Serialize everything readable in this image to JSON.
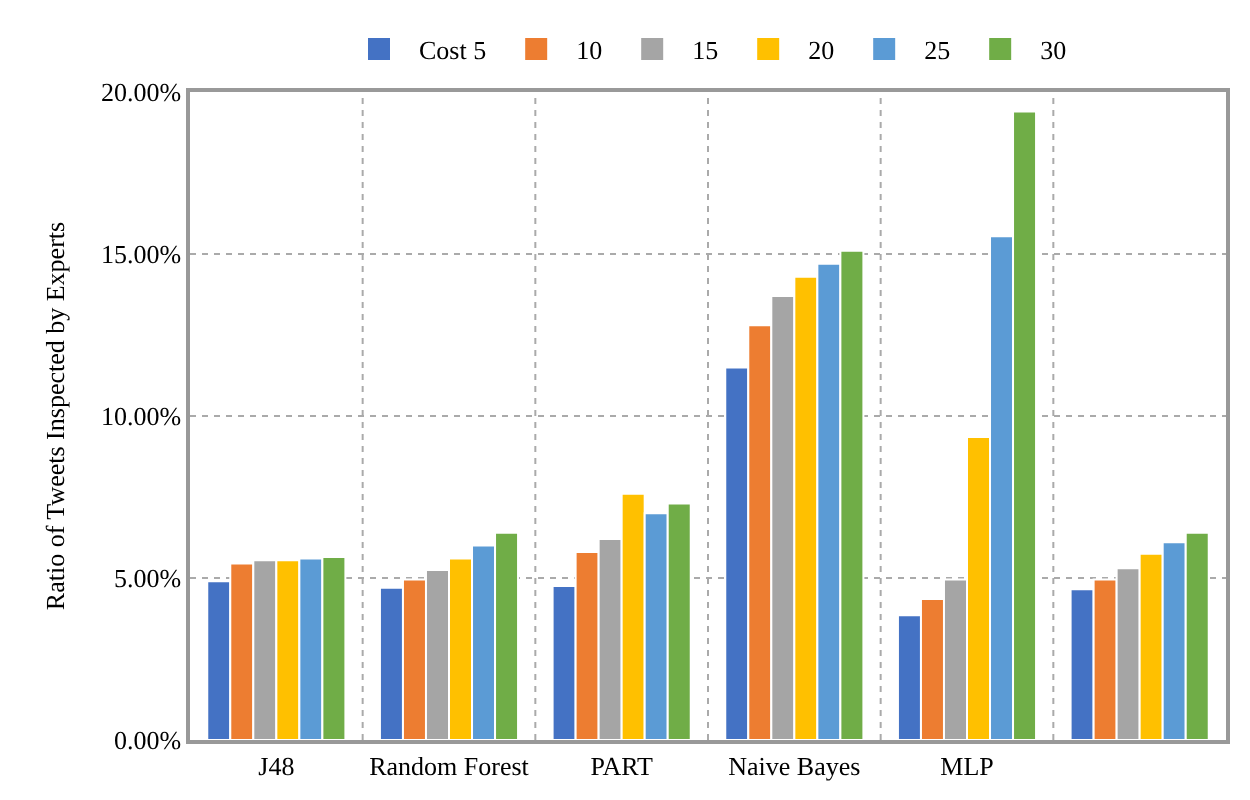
{
  "chart_data": {
    "type": "bar",
    "ylabel": "Ratio of Tweets Inspected by Experts",
    "categories": [
      "J48",
      "Random Forest",
      "PART",
      "Naive Bayes",
      "MLP",
      null
    ],
    "series": [
      {
        "name": "Cost 5",
        "color": "#4472c4",
        "values": [
          4.9,
          4.7,
          4.75,
          11.5,
          3.85,
          4.65
        ]
      },
      {
        "name": "10",
        "color": "#ed7d31",
        "values": [
          5.45,
          4.95,
          5.8,
          12.8,
          4.35,
          4.95
        ]
      },
      {
        "name": "15",
        "color": "#a5a5a5",
        "values": [
          5.55,
          5.25,
          6.2,
          13.7,
          4.95,
          5.3
        ]
      },
      {
        "name": "20",
        "color": "#ffc000",
        "values": [
          5.55,
          5.6,
          7.6,
          14.3,
          9.35,
          5.75
        ]
      },
      {
        "name": "25",
        "color": "#5b9bd5",
        "values": [
          5.6,
          6.0,
          7.0,
          14.7,
          15.55,
          6.1
        ]
      },
      {
        "name": "30",
        "color": "#70ad47",
        "values": [
          5.65,
          6.4,
          7.3,
          15.1,
          19.4,
          6.4
        ]
      }
    ],
    "ylim": [
      0,
      20
    ],
    "yticks": [
      {
        "value": 0,
        "label": "0.00%"
      },
      {
        "value": 5,
        "label": "5.00%"
      },
      {
        "value": 10,
        "label": "10.00%"
      },
      {
        "value": 15,
        "label": "15.00%"
      },
      {
        "value": 20,
        "label": "20.00%"
      }
    ],
    "grid": true,
    "legend": "top"
  }
}
